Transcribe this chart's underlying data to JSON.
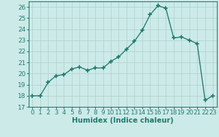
{
  "x_data": [
    0,
    1,
    2,
    3,
    4,
    5,
    6,
    7,
    8,
    9,
    10,
    11,
    12,
    13,
    14,
    15,
    16,
    17,
    18,
    19,
    20,
    21,
    22,
    23
  ],
  "y_data": [
    18.0,
    18.0,
    19.2,
    19.8,
    19.9,
    20.4,
    20.6,
    20.3,
    20.5,
    20.5,
    21.1,
    21.5,
    22.2,
    22.9,
    23.9,
    25.3,
    26.1,
    25.9,
    23.2,
    23.3,
    23.0,
    22.7,
    17.6,
    18.0
  ],
  "line_color": "#1f7a6d",
  "marker": "+",
  "marker_size": 4,
  "marker_lw": 1.2,
  "bg_color": "#cceae8",
  "grid_color": "#b0d4d0",
  "xlabel": "Humidex (Indice chaleur)",
  "ylim": [
    17,
    26.5
  ],
  "xlim": [
    -0.5,
    23.5
  ],
  "yticks": [
    17,
    18,
    19,
    20,
    21,
    22,
    23,
    24,
    25,
    26
  ],
  "xticks": [
    0,
    1,
    2,
    3,
    4,
    5,
    6,
    7,
    8,
    9,
    10,
    11,
    12,
    13,
    14,
    15,
    16,
    17,
    18,
    19,
    20,
    21,
    22,
    23
  ],
  "xlabel_fontsize": 7.5,
  "tick_fontsize": 6.5
}
